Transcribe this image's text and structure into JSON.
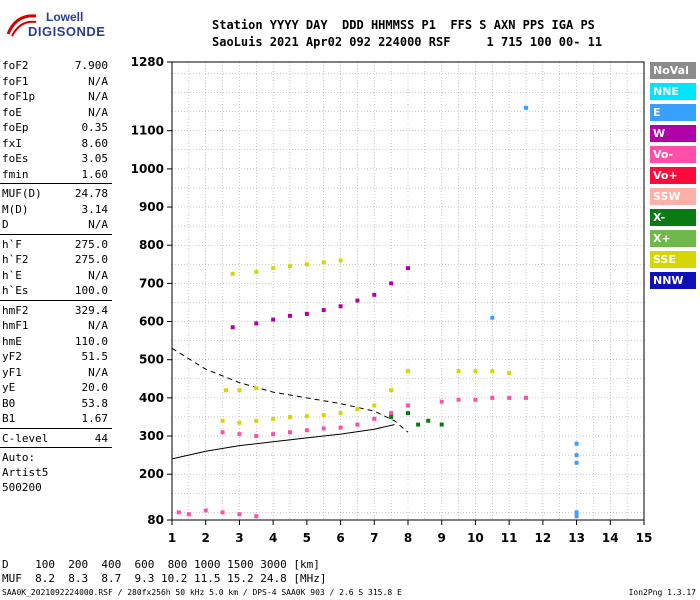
{
  "logo": {
    "line1": "Lowell",
    "line2": "DIGISONDE"
  },
  "header": {
    "row1": "Station YYYY DAY  DDD HHMMSS P1  FFS S AXN PPS IGA PS",
    "row2": "SaoLuis 2021 Apr02 092 224000 RSF     1 715 100 00- 11"
  },
  "params": {
    "group1": [
      {
        "k": "foF2",
        "v": "7.900"
      },
      {
        "k": "foF1",
        "v": "N/A"
      },
      {
        "k": "foF1p",
        "v": "N/A"
      },
      {
        "k": "foE",
        "v": "N/A"
      },
      {
        "k": "foEp",
        "v": "0.35"
      },
      {
        "k": "fxI",
        "v": "8.60"
      },
      {
        "k": "foEs",
        "v": "3.05"
      },
      {
        "k": "fmin",
        "v": "1.60"
      }
    ],
    "group2": [
      {
        "k": "MUF(D)",
        "v": "24.78"
      },
      {
        "k": "M(D)",
        "v": "3.14"
      },
      {
        "k": "D",
        "v": "N/A"
      }
    ],
    "group3": [
      {
        "k": "h`F",
        "v": "275.0"
      },
      {
        "k": "h`F2",
        "v": "275.0"
      },
      {
        "k": "h`E",
        "v": "N/A"
      },
      {
        "k": "h`Es",
        "v": "100.0"
      }
    ],
    "group4": [
      {
        "k": "hmF2",
        "v": "329.4"
      },
      {
        "k": "hmF1",
        "v": "N/A"
      },
      {
        "k": "hmE",
        "v": "110.0"
      },
      {
        "k": "yF2",
        "v": "51.5"
      },
      {
        "k": "yF1",
        "v": "N/A"
      },
      {
        "k": "yE",
        "v": "20.0"
      },
      {
        "k": "B0",
        "v": "53.8"
      },
      {
        "k": "B1",
        "v": "1.67"
      }
    ],
    "group5": [
      {
        "k": "C-level",
        "v": "44"
      }
    ],
    "auto": [
      "Auto:",
      "Artist5",
      "500200"
    ]
  },
  "legend": [
    {
      "label": "NoVal",
      "color": "#8c8c8c"
    },
    {
      "label": "NNE",
      "color": "#00e5ff"
    },
    {
      "label": "E",
      "color": "#3aa0ff"
    },
    {
      "label": "W",
      "color": "#b000a8"
    },
    {
      "label": "Vo-",
      "color": "#ff4fa8"
    },
    {
      "label": "Vo+",
      "color": "#ff0a3c"
    },
    {
      "label": "SSW",
      "color": "#ffb0a8"
    },
    {
      "label": "X-",
      "color": "#0a7a14"
    },
    {
      "label": "X+",
      "color": "#6fb84a"
    },
    {
      "label": "SSE",
      "color": "#d6d600"
    },
    {
      "label": "NNW",
      "color": "#1010b8"
    }
  ],
  "footer": {
    "line1": "D    100  200  400  600  800 1000 1500 3000 [km]",
    "line2": "MUF  8.2  8.3  8.7  9.3 10.2 11.5 15.2 24.8 [MHz]",
    "line3": "SAA0K_2021092224000.RSF / 280fx256h 50 kHz 5.0 km / DPS-4 SAA0K 903 / 2.6 S 315.8 E",
    "version": "Ion2Png 1.3.17"
  },
  "chart_data": {
    "type": "scatter",
    "xlim": [
      1,
      15
    ],
    "ylim": [
      80,
      1280
    ],
    "x_ticks": [
      1,
      2,
      3,
      4,
      5,
      6,
      7,
      8,
      9,
      10,
      11,
      12,
      13,
      14,
      15
    ],
    "y_ticks": [
      80,
      200,
      300,
      400,
      500,
      600,
      700,
      800,
      900,
      1000,
      1100,
      1280
    ],
    "grid": true,
    "series": [
      {
        "color": "#ff4fa8",
        "points": [
          [
            2.5,
            310
          ],
          [
            3,
            305
          ],
          [
            3.5,
            300
          ],
          [
            4,
            305
          ],
          [
            4.5,
            310
          ],
          [
            5,
            315
          ],
          [
            5.5,
            320
          ],
          [
            6,
            322
          ],
          [
            6.5,
            330
          ],
          [
            7,
            345
          ],
          [
            7.5,
            360
          ],
          [
            8,
            380
          ]
        ]
      },
      {
        "color": "#d6d600",
        "points": [
          [
            2.5,
            340
          ],
          [
            3,
            335
          ],
          [
            3.5,
            340
          ],
          [
            4,
            345
          ],
          [
            4.5,
            350
          ],
          [
            5,
            352
          ],
          [
            5.5,
            355
          ],
          [
            6,
            360
          ],
          [
            6.5,
            370
          ],
          [
            7,
            380
          ],
          [
            7.5,
            420
          ],
          [
            8,
            470
          ]
        ]
      },
      {
        "color": "#d6d600",
        "points": [
          [
            2.8,
            725
          ],
          [
            3.5,
            730
          ],
          [
            4,
            740
          ],
          [
            4.5,
            745
          ],
          [
            5,
            750
          ],
          [
            5.5,
            755
          ],
          [
            6,
            760
          ]
        ]
      },
      {
        "color": "#b000a8",
        "points": [
          [
            2.8,
            585
          ],
          [
            3.5,
            595
          ],
          [
            4,
            605
          ],
          [
            4.5,
            615
          ],
          [
            5,
            620
          ],
          [
            5.5,
            630
          ],
          [
            6,
            640
          ],
          [
            6.5,
            655
          ],
          [
            7,
            670
          ],
          [
            7.5,
            700
          ],
          [
            8,
            740
          ]
        ]
      },
      {
        "color": "#d6d600",
        "points": [
          [
            2.6,
            420
          ],
          [
            3,
            420
          ],
          [
            3.5,
            425
          ],
          [
            9.5,
            470
          ],
          [
            10,
            470
          ],
          [
            10.5,
            470
          ],
          [
            11,
            465
          ]
        ]
      },
      {
        "color": "#ff4fa8",
        "points": [
          [
            9,
            390
          ],
          [
            9.5,
            395
          ],
          [
            10,
            395
          ],
          [
            10.5,
            400
          ],
          [
            11,
            400
          ],
          [
            11.5,
            400
          ]
        ]
      },
      {
        "color": "#3aa0ff",
        "points": [
          [
            13,
            230
          ],
          [
            13,
            250
          ],
          [
            13,
            280
          ],
          [
            13,
            100
          ],
          [
            13,
            90
          ],
          [
            11.5,
            1160
          ],
          [
            10.5,
            610
          ]
        ]
      },
      {
        "color": "#ff4fa8",
        "points": [
          [
            1.2,
            100
          ],
          [
            1.5,
            95
          ],
          [
            2,
            105
          ],
          [
            2.5,
            100
          ],
          [
            3,
            95
          ],
          [
            3.5,
            90
          ]
        ]
      },
      {
        "color": "#0a7a14",
        "points": [
          [
            7.5,
            350
          ],
          [
            8,
            360
          ],
          [
            8.3,
            330
          ],
          [
            8.6,
            340
          ],
          [
            9,
            330
          ]
        ]
      }
    ],
    "curves": [
      {
        "style": "dashed",
        "points": [
          [
            1,
            530
          ],
          [
            2,
            475
          ],
          [
            3,
            440
          ],
          [
            4,
            415
          ],
          [
            5,
            400
          ],
          [
            6,
            385
          ],
          [
            7,
            365
          ],
          [
            7.6,
            340
          ],
          [
            8,
            310
          ]
        ]
      },
      {
        "style": "solid",
        "points": [
          [
            1,
            240
          ],
          [
            2,
            260
          ],
          [
            3,
            275
          ],
          [
            4,
            285
          ],
          [
            5,
            295
          ],
          [
            6,
            305
          ],
          [
            7,
            318
          ],
          [
            7.6,
            330
          ]
        ]
      }
    ]
  }
}
